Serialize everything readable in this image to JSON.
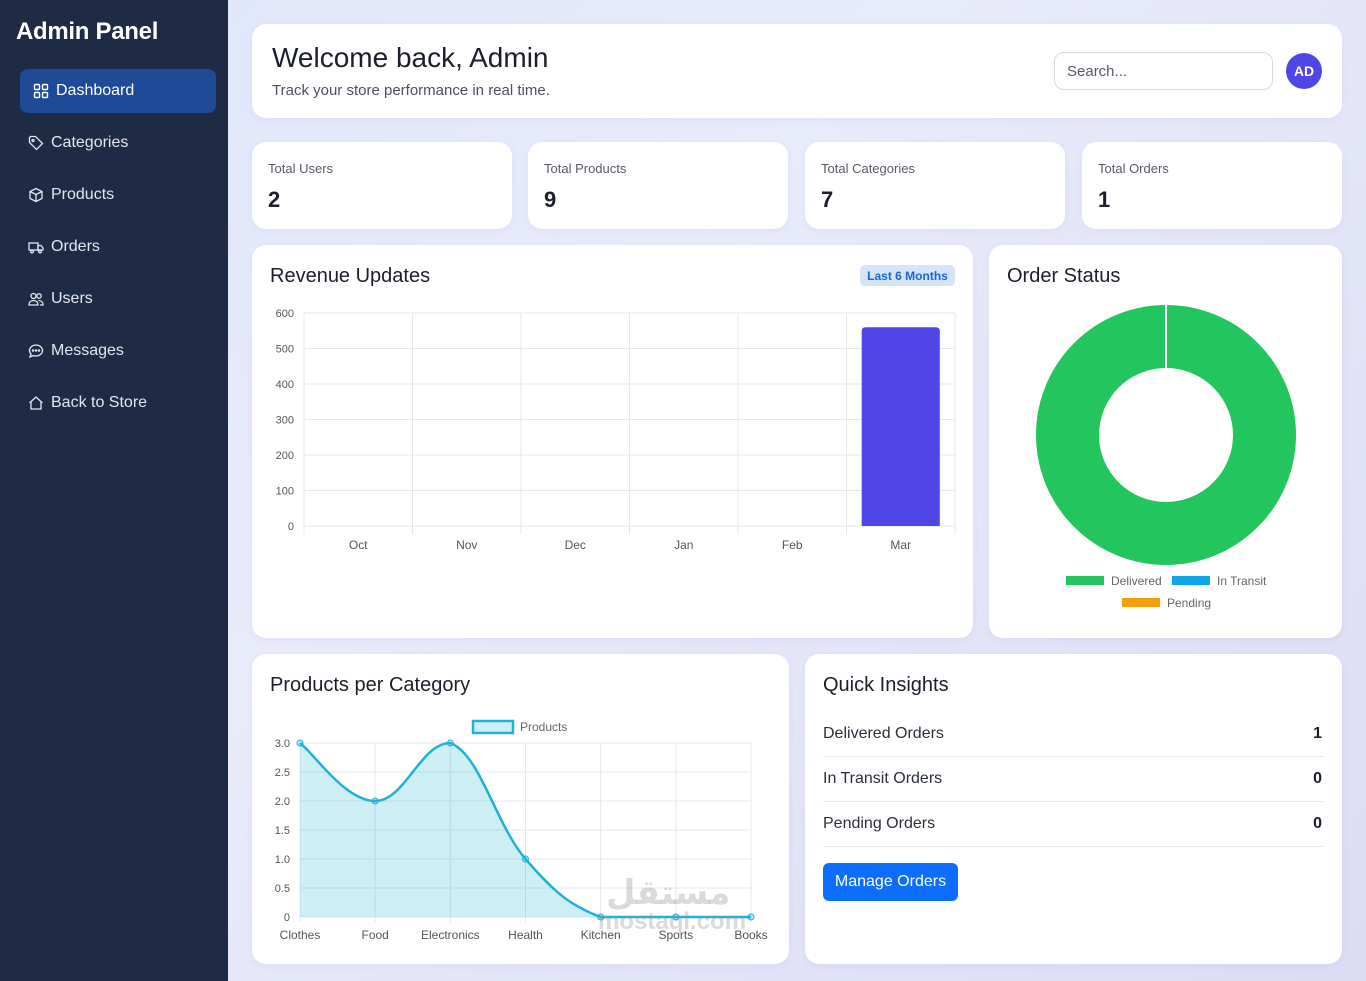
{
  "sidebar": {
    "brand": "Admin Panel",
    "items": [
      {
        "label": "Dashboard",
        "icon": "grid-icon"
      },
      {
        "label": "Categories",
        "icon": "tag-icon"
      },
      {
        "label": "Products",
        "icon": "box-icon"
      },
      {
        "label": "Orders",
        "icon": "truck-icon"
      },
      {
        "label": "Users",
        "icon": "users-icon"
      },
      {
        "label": "Messages",
        "icon": "chat-icon"
      },
      {
        "label": "Back to Store",
        "icon": "home-icon"
      }
    ]
  },
  "header": {
    "title": "Welcome back, Admin",
    "subtitle": "Track your store performance in real time.",
    "search_placeholder": "Search...",
    "avatar_initials": "AD"
  },
  "stats": [
    {
      "label": "Total Users",
      "value": "2"
    },
    {
      "label": "Total Products",
      "value": "9"
    },
    {
      "label": "Total Categories",
      "value": "7"
    },
    {
      "label": "Total Orders",
      "value": "1"
    }
  ],
  "revenue": {
    "title": "Revenue Updates",
    "badge": "Last 6 Months"
  },
  "order_status": {
    "title": "Order Status"
  },
  "products_per_category": {
    "title": "Products per Category"
  },
  "insights": {
    "title": "Quick Insights",
    "rows": [
      {
        "label": "Delivered Orders",
        "value": "1"
      },
      {
        "label": "In Transit Orders",
        "value": "0"
      },
      {
        "label": "Pending Orders",
        "value": "0"
      }
    ],
    "button_label": "Manage Orders"
  },
  "watermark": {
    "arabic": "مستقل",
    "latin": "mostaql.com"
  },
  "colors": {
    "sidebar_bg": "#1f2a44",
    "active_nav": "#1e4a98",
    "bar": "#4f46e5",
    "delivered": "#22c55e",
    "in_transit": "#0ea5e9",
    "pending": "#f59e0b",
    "line": "#1fb1d6",
    "button": "#0d6efd"
  },
  "chart_data": [
    {
      "type": "bar",
      "title": "Revenue Updates",
      "categories": [
        "Oct",
        "Nov",
        "Dec",
        "Jan",
        "Feb",
        "Mar"
      ],
      "values": [
        0,
        0,
        0,
        0,
        0,
        560
      ],
      "ylim": [
        0,
        600
      ],
      "yticks": [
        0,
        100,
        200,
        300,
        400,
        500,
        600
      ],
      "grid": true
    },
    {
      "type": "pie",
      "title": "Order Status",
      "labels": [
        "Delivered",
        "In Transit",
        "Pending"
      ],
      "values": [
        1,
        0,
        0
      ],
      "colors": [
        "#22c55e",
        "#0ea5e9",
        "#f59e0b"
      ],
      "legend": "bottom"
    },
    {
      "type": "line",
      "title": "Products per Category",
      "series": [
        {
          "name": "Products",
          "values": [
            3,
            2,
            3,
            1,
            0,
            0,
            0
          ]
        }
      ],
      "categories": [
        "Clothes",
        "Food",
        "Electronics",
        "Health",
        "Kitchen",
        "Sports",
        "Books"
      ],
      "ylim": [
        0,
        3
      ],
      "yticks": [
        "0",
        "0.5",
        "1.0",
        "1.5",
        "2.0",
        "2.5",
        "3.0"
      ],
      "fill": true,
      "legend": "top"
    }
  ]
}
